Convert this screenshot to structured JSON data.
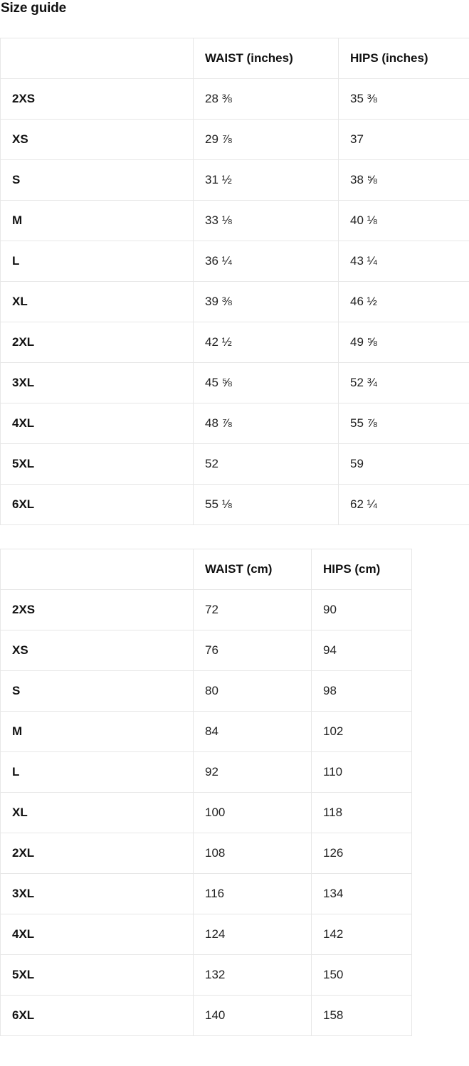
{
  "page_title": "Size guide",
  "tables": [
    {
      "id": "inches",
      "headers": [
        "",
        "WAIST (inches)",
        "HIPS (inches)"
      ],
      "rows": [
        {
          "size": "2XS",
          "waist": "28 ⅜",
          "hips": "35 ⅜"
        },
        {
          "size": "XS",
          "waist": "29 ⅞",
          "hips": "37"
        },
        {
          "size": "S",
          "waist": "31 ½",
          "hips": "38 ⅝"
        },
        {
          "size": "M",
          "waist": "33 ⅛",
          "hips": "40 ⅛"
        },
        {
          "size": "L",
          "waist": "36 ¼",
          "hips": "43 ¼"
        },
        {
          "size": "XL",
          "waist": "39 ⅜",
          "hips": "46 ½"
        },
        {
          "size": "2XL",
          "waist": "42 ½",
          "hips": "49 ⅝"
        },
        {
          "size": "3XL",
          "waist": "45 ⅝",
          "hips": "52 ¾"
        },
        {
          "size": "4XL",
          "waist": "48 ⅞",
          "hips": "55 ⅞"
        },
        {
          "size": "5XL",
          "waist": "52",
          "hips": "59"
        },
        {
          "size": "6XL",
          "waist": "55 ⅛",
          "hips": "62 ¼"
        }
      ]
    },
    {
      "id": "cm",
      "headers": [
        "",
        "WAIST (cm)",
        "HIPS (cm)"
      ],
      "rows": [
        {
          "size": "2XS",
          "waist": "72",
          "hips": "90"
        },
        {
          "size": "XS",
          "waist": "76",
          "hips": "94"
        },
        {
          "size": "S",
          "waist": "80",
          "hips": "98"
        },
        {
          "size": "M",
          "waist": "84",
          "hips": "102"
        },
        {
          "size": "L",
          "waist": "92",
          "hips": "110"
        },
        {
          "size": "XL",
          "waist": "100",
          "hips": "118"
        },
        {
          "size": "2XL",
          "waist": "108",
          "hips": "126"
        },
        {
          "size": "3XL",
          "waist": "116",
          "hips": "134"
        },
        {
          "size": "4XL",
          "waist": "124",
          "hips": "142"
        },
        {
          "size": "5XL",
          "waist": "132",
          "hips": "150"
        },
        {
          "size": "6XL",
          "waist": "140",
          "hips": "158"
        }
      ]
    }
  ],
  "colors": {
    "border": "#e7e7e7",
    "heading_text": "#111111",
    "body_text": "#222222",
    "background": "#ffffff"
  }
}
